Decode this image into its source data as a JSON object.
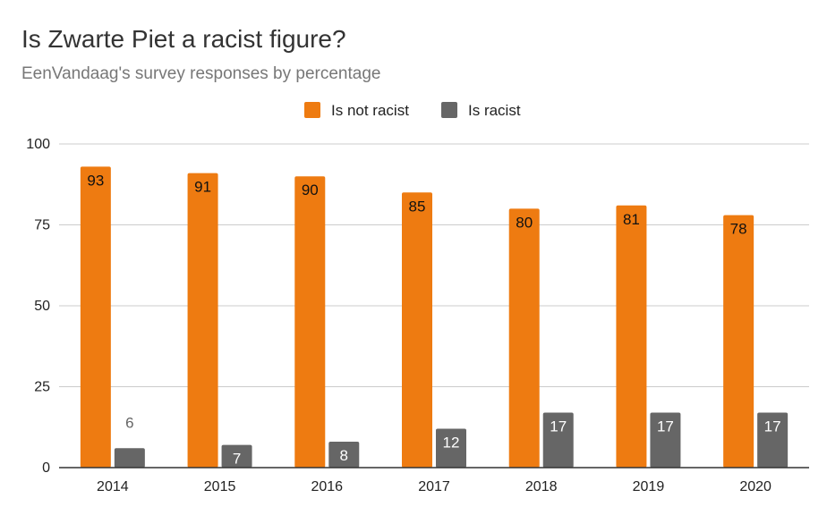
{
  "title": "Is Zwarte Piet a racist figure?",
  "subtitle": "EenVandaag's survey responses by percentage",
  "colors": {
    "not_racist": "#EE7B11",
    "racist": "#666666",
    "gridline": "#cccccc",
    "axis": "#333333"
  },
  "chart_data": {
    "type": "bar",
    "title": "Is Zwarte Piet a racist figure?",
    "subtitle": "EenVandaag's survey responses by percentage",
    "categories": [
      "2014",
      "2015",
      "2016",
      "2017",
      "2018",
      "2019",
      "2020"
    ],
    "series": [
      {
        "name": "Is not racist",
        "color": "#EE7B11",
        "values": [
          93,
          91,
          90,
          85,
          80,
          81,
          78
        ]
      },
      {
        "name": "Is racist",
        "color": "#666666",
        "values": [
          6,
          7,
          8,
          12,
          17,
          17,
          17
        ]
      }
    ],
    "ylim": [
      0,
      100
    ],
    "yticks": [
      0,
      25,
      50,
      75,
      100
    ],
    "xlabel": "",
    "ylabel": "",
    "grid": true,
    "legend": "top-center"
  }
}
